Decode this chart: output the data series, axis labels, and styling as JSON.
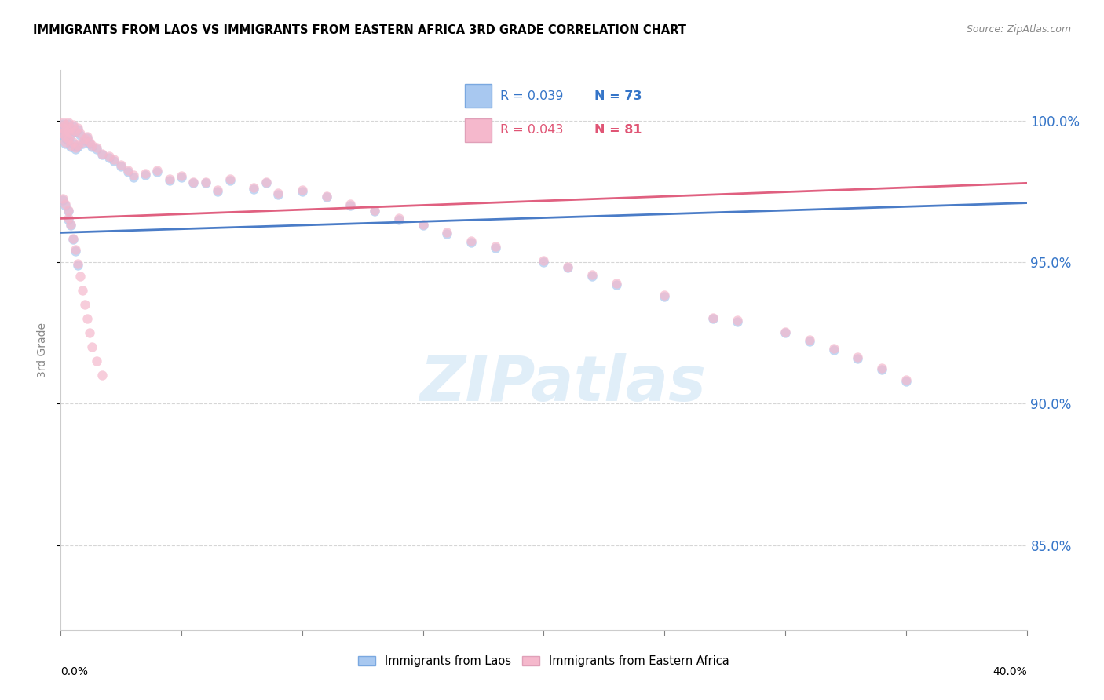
{
  "title": "IMMIGRANTS FROM LAOS VS IMMIGRANTS FROM EASTERN AFRICA 3RD GRADE CORRELATION CHART",
  "source": "Source: ZipAtlas.com",
  "ylabel": "3rd Grade",
  "legend_laos": "Immigrants from Laos",
  "legend_eastern_africa": "Immigrants from Eastern Africa",
  "R_laos": 0.039,
  "N_laos": 73,
  "R_eastern_africa": 0.043,
  "N_eastern_africa": 81,
  "color_laos": "#a8c8f0",
  "color_eastern_africa": "#f5b8cc",
  "color_laos_line": "#4a7cc7",
  "color_eastern_africa_line": "#e06080",
  "color_text_blue": "#3575c8",
  "color_text_pink": "#e05575",
  "xmin": 0.0,
  "xmax": 0.4,
  "ymin": 0.82,
  "ymax": 1.018,
  "ytick_values": [
    0.85,
    0.9,
    0.95,
    1.0
  ],
  "laos_trendline": [
    0.9605,
    0.971
  ],
  "ea_trendline": [
    0.9655,
    0.978
  ],
  "watermark_text": "ZIPatlas",
  "watermark_color": "#c8e0f4",
  "laos_x": [
    0.001,
    0.001,
    0.001,
    0.002,
    0.002,
    0.002,
    0.002,
    0.003,
    0.003,
    0.003,
    0.004,
    0.004,
    0.004,
    0.005,
    0.005,
    0.006,
    0.006,
    0.007,
    0.007,
    0.008,
    0.009,
    0.01,
    0.011,
    0.012,
    0.013,
    0.015,
    0.017,
    0.02,
    0.022,
    0.025,
    0.028,
    0.03,
    0.035,
    0.04,
    0.045,
    0.05,
    0.055,
    0.06,
    0.065,
    0.07,
    0.08,
    0.085,
    0.09,
    0.1,
    0.11,
    0.12,
    0.13,
    0.14,
    0.15,
    0.16,
    0.17,
    0.18,
    0.2,
    0.21,
    0.22,
    0.23,
    0.25,
    0.27,
    0.28,
    0.3,
    0.31,
    0.32,
    0.33,
    0.34,
    0.35,
    0.001,
    0.002,
    0.003,
    0.003,
    0.004,
    0.005,
    0.006,
    0.007
  ],
  "laos_y": [
    0.999,
    0.995,
    0.997,
    0.998,
    0.996,
    0.994,
    0.992,
    0.999,
    0.996,
    0.993,
    0.997,
    0.995,
    0.991,
    0.998,
    0.992,
    0.996,
    0.99,
    0.997,
    0.991,
    0.995,
    0.992,
    0.993,
    0.994,
    0.992,
    0.991,
    0.99,
    0.988,
    0.987,
    0.986,
    0.984,
    0.982,
    0.98,
    0.981,
    0.982,
    0.979,
    0.98,
    0.978,
    0.978,
    0.975,
    0.979,
    0.976,
    0.978,
    0.974,
    0.975,
    0.973,
    0.97,
    0.968,
    0.965,
    0.963,
    0.96,
    0.957,
    0.955,
    0.95,
    0.948,
    0.945,
    0.942,
    0.938,
    0.93,
    0.929,
    0.925,
    0.922,
    0.919,
    0.916,
    0.912,
    0.908,
    0.972,
    0.97,
    0.968,
    0.965,
    0.963,
    0.958,
    0.954,
    0.949
  ],
  "ea_x": [
    0.001,
    0.001,
    0.001,
    0.002,
    0.002,
    0.002,
    0.002,
    0.003,
    0.003,
    0.003,
    0.004,
    0.004,
    0.004,
    0.005,
    0.005,
    0.006,
    0.006,
    0.007,
    0.007,
    0.008,
    0.009,
    0.01,
    0.011,
    0.012,
    0.013,
    0.015,
    0.017,
    0.02,
    0.022,
    0.025,
    0.028,
    0.03,
    0.035,
    0.04,
    0.045,
    0.05,
    0.055,
    0.06,
    0.065,
    0.07,
    0.08,
    0.085,
    0.09,
    0.1,
    0.11,
    0.12,
    0.13,
    0.14,
    0.15,
    0.16,
    0.17,
    0.18,
    0.2,
    0.21,
    0.22,
    0.23,
    0.25,
    0.27,
    0.28,
    0.3,
    0.31,
    0.32,
    0.33,
    0.34,
    0.35,
    0.001,
    0.002,
    0.003,
    0.003,
    0.004,
    0.005,
    0.006,
    0.007,
    0.008,
    0.009,
    0.01,
    0.011,
    0.012,
    0.013,
    0.015,
    0.017
  ],
  "ea_y": [
    0.9995,
    0.9975,
    0.9955,
    0.9985,
    0.9965,
    0.9945,
    0.9925,
    0.9995,
    0.9965,
    0.9935,
    0.9975,
    0.9955,
    0.9915,
    0.9985,
    0.9925,
    0.9965,
    0.9905,
    0.9975,
    0.9915,
    0.9955,
    0.9925,
    0.9935,
    0.9945,
    0.9925,
    0.9915,
    0.9905,
    0.9885,
    0.9875,
    0.9865,
    0.9845,
    0.9825,
    0.981,
    0.9815,
    0.9825,
    0.9795,
    0.9805,
    0.9785,
    0.9785,
    0.9755,
    0.9795,
    0.9765,
    0.9785,
    0.9745,
    0.9755,
    0.9735,
    0.9705,
    0.9685,
    0.9655,
    0.9635,
    0.9605,
    0.9575,
    0.9555,
    0.9505,
    0.9485,
    0.9455,
    0.9425,
    0.9385,
    0.9305,
    0.9295,
    0.9255,
    0.9225,
    0.9195,
    0.9165,
    0.9125,
    0.9085,
    0.9725,
    0.9705,
    0.9685,
    0.9655,
    0.9635,
    0.9585,
    0.9545,
    0.9495,
    0.945,
    0.94,
    0.935,
    0.93,
    0.925,
    0.92,
    0.915,
    0.91
  ]
}
